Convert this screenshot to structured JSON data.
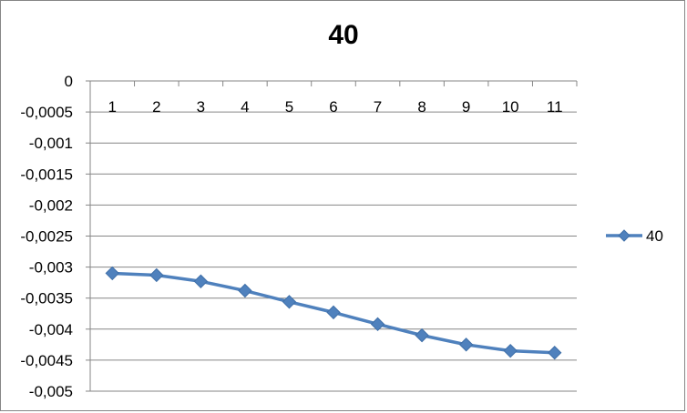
{
  "chart_data": {
    "type": "line",
    "title": "40",
    "xlabel": "",
    "ylabel": "",
    "categories": [
      "1",
      "2",
      "3",
      "4",
      "5",
      "6",
      "7",
      "8",
      "9",
      "10",
      "11"
    ],
    "series": [
      {
        "name": "40",
        "color": "#4f81bd",
        "marker": "diamond",
        "values": [
          -0.0031,
          -0.00313,
          -0.00323,
          -0.00338,
          -0.00356,
          -0.00373,
          -0.00392,
          -0.0041,
          -0.00425,
          -0.00435,
          -0.00438
        ]
      }
    ],
    "ylim": [
      -0.005,
      0
    ],
    "y_ticks": [
      {
        "value": 0,
        "label": "0"
      },
      {
        "value": -0.0005,
        "label": "-0,0005"
      },
      {
        "value": -0.001,
        "label": "-0,001"
      },
      {
        "value": -0.0015,
        "label": "-0,0015"
      },
      {
        "value": -0.002,
        "label": "-0,002"
      },
      {
        "value": -0.0025,
        "label": "-0,0025"
      },
      {
        "value": -0.003,
        "label": "-0,003"
      },
      {
        "value": -0.0035,
        "label": "-0,0035"
      },
      {
        "value": -0.004,
        "label": "-0,004"
      },
      {
        "value": -0.0045,
        "label": "-0,0045"
      },
      {
        "value": -0.005,
        "label": "-0,005"
      }
    ],
    "x_axis_position": "top",
    "grid": true,
    "legend": "right"
  }
}
